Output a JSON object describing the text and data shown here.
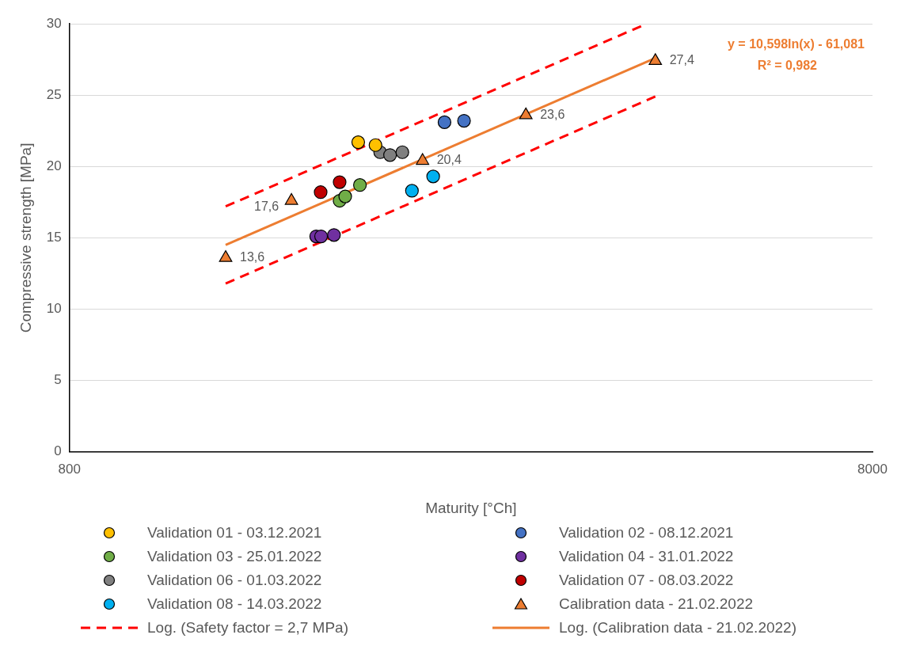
{
  "chart_data": {
    "type": "scatter",
    "xlabel": "Maturity [°Ch]",
    "ylabel": "Compressive strength [MPa]",
    "log": "x",
    "xlim": [
      800,
      8000
    ],
    "xticks": [
      800,
      8000
    ],
    "ylim": [
      0,
      30
    ],
    "yticks": [
      0,
      5,
      10,
      15,
      20,
      25,
      30
    ],
    "grid": "y",
    "legend": "bottom",
    "annotations": [
      "y = 10,598ln(x) - 61,081",
      "R² = 0,982"
    ],
    "series": [
      {
        "name": "Validation 01 - 03.12.2021",
        "marker": "circle",
        "color": "#ffc000",
        "x": [
          1831,
          1924
        ],
        "values": [
          21.7,
          21.5
        ]
      },
      {
        "name": "Validation 02 - 08.12.2021",
        "marker": "circle",
        "color": "#4472c4",
        "x": [
          2345,
          2480
        ],
        "values": [
          23.1,
          23.2
        ]
      },
      {
        "name": "Validation 03 - 25.01.2022",
        "marker": "circle",
        "color": "#70ad47",
        "x": [
          1736,
          1764,
          1840
        ],
        "values": [
          17.6,
          17.9,
          18.7
        ]
      },
      {
        "name": "Validation 04 - 31.01.2022",
        "marker": "circle",
        "color": "#7030a0",
        "x": [
          1623,
          1646,
          1708
        ],
        "values": [
          15.1,
          15.1,
          15.2
        ]
      },
      {
        "name": "Validation 06 - 01.03.2022",
        "marker": "circle",
        "color": "#808080",
        "x": [
          1950,
          2006,
          2078
        ],
        "values": [
          21.0,
          20.8,
          21.0
        ]
      },
      {
        "name": "Validation 07 - 08.03.2022",
        "marker": "circle",
        "color": "#c00000",
        "x": [
          1644,
          1736
        ],
        "values": [
          18.2,
          18.9
        ]
      },
      {
        "name": "Validation 08 - 14.03.2022",
        "marker": "circle",
        "color": "#00b0f0",
        "x": [
          2136,
          2270
        ],
        "values": [
          18.3,
          19.3
        ]
      },
      {
        "name": "Calibration data - 21.02.2022",
        "marker": "triangle",
        "color": "#ed7d31",
        "x": [
          1252,
          1512,
          2202,
          2961,
          4292
        ],
        "values": [
          13.6,
          17.6,
          20.4,
          23.6,
          27.4
        ],
        "value_labels": [
          "13,6",
          "17,6",
          "20,4",
          "23,6",
          "27,4"
        ]
      },
      {
        "name": "Log. (Safety factor = 2,7 MPa)",
        "type": "line",
        "marker": "none",
        "line_style": "dashed",
        "color": "#ff0000",
        "x": [
          1252,
          4186
        ],
        "values": [
          17.2,
          30.0
        ]
      },
      {
        "name": "Log. (Calibration data - 21.02.2022)",
        "type": "line",
        "marker": "none",
        "line_style": "solid",
        "color": "#ed7d31",
        "x": [
          1252,
          4292
        ],
        "values": [
          14.5,
          27.6
        ]
      },
      {
        "type": "line",
        "marker": "none",
        "line_style": "dashed",
        "color": "#ff0000",
        "x": [
          1252,
          4292
        ],
        "values": [
          11.8,
          24.9
        ]
      }
    ]
  }
}
